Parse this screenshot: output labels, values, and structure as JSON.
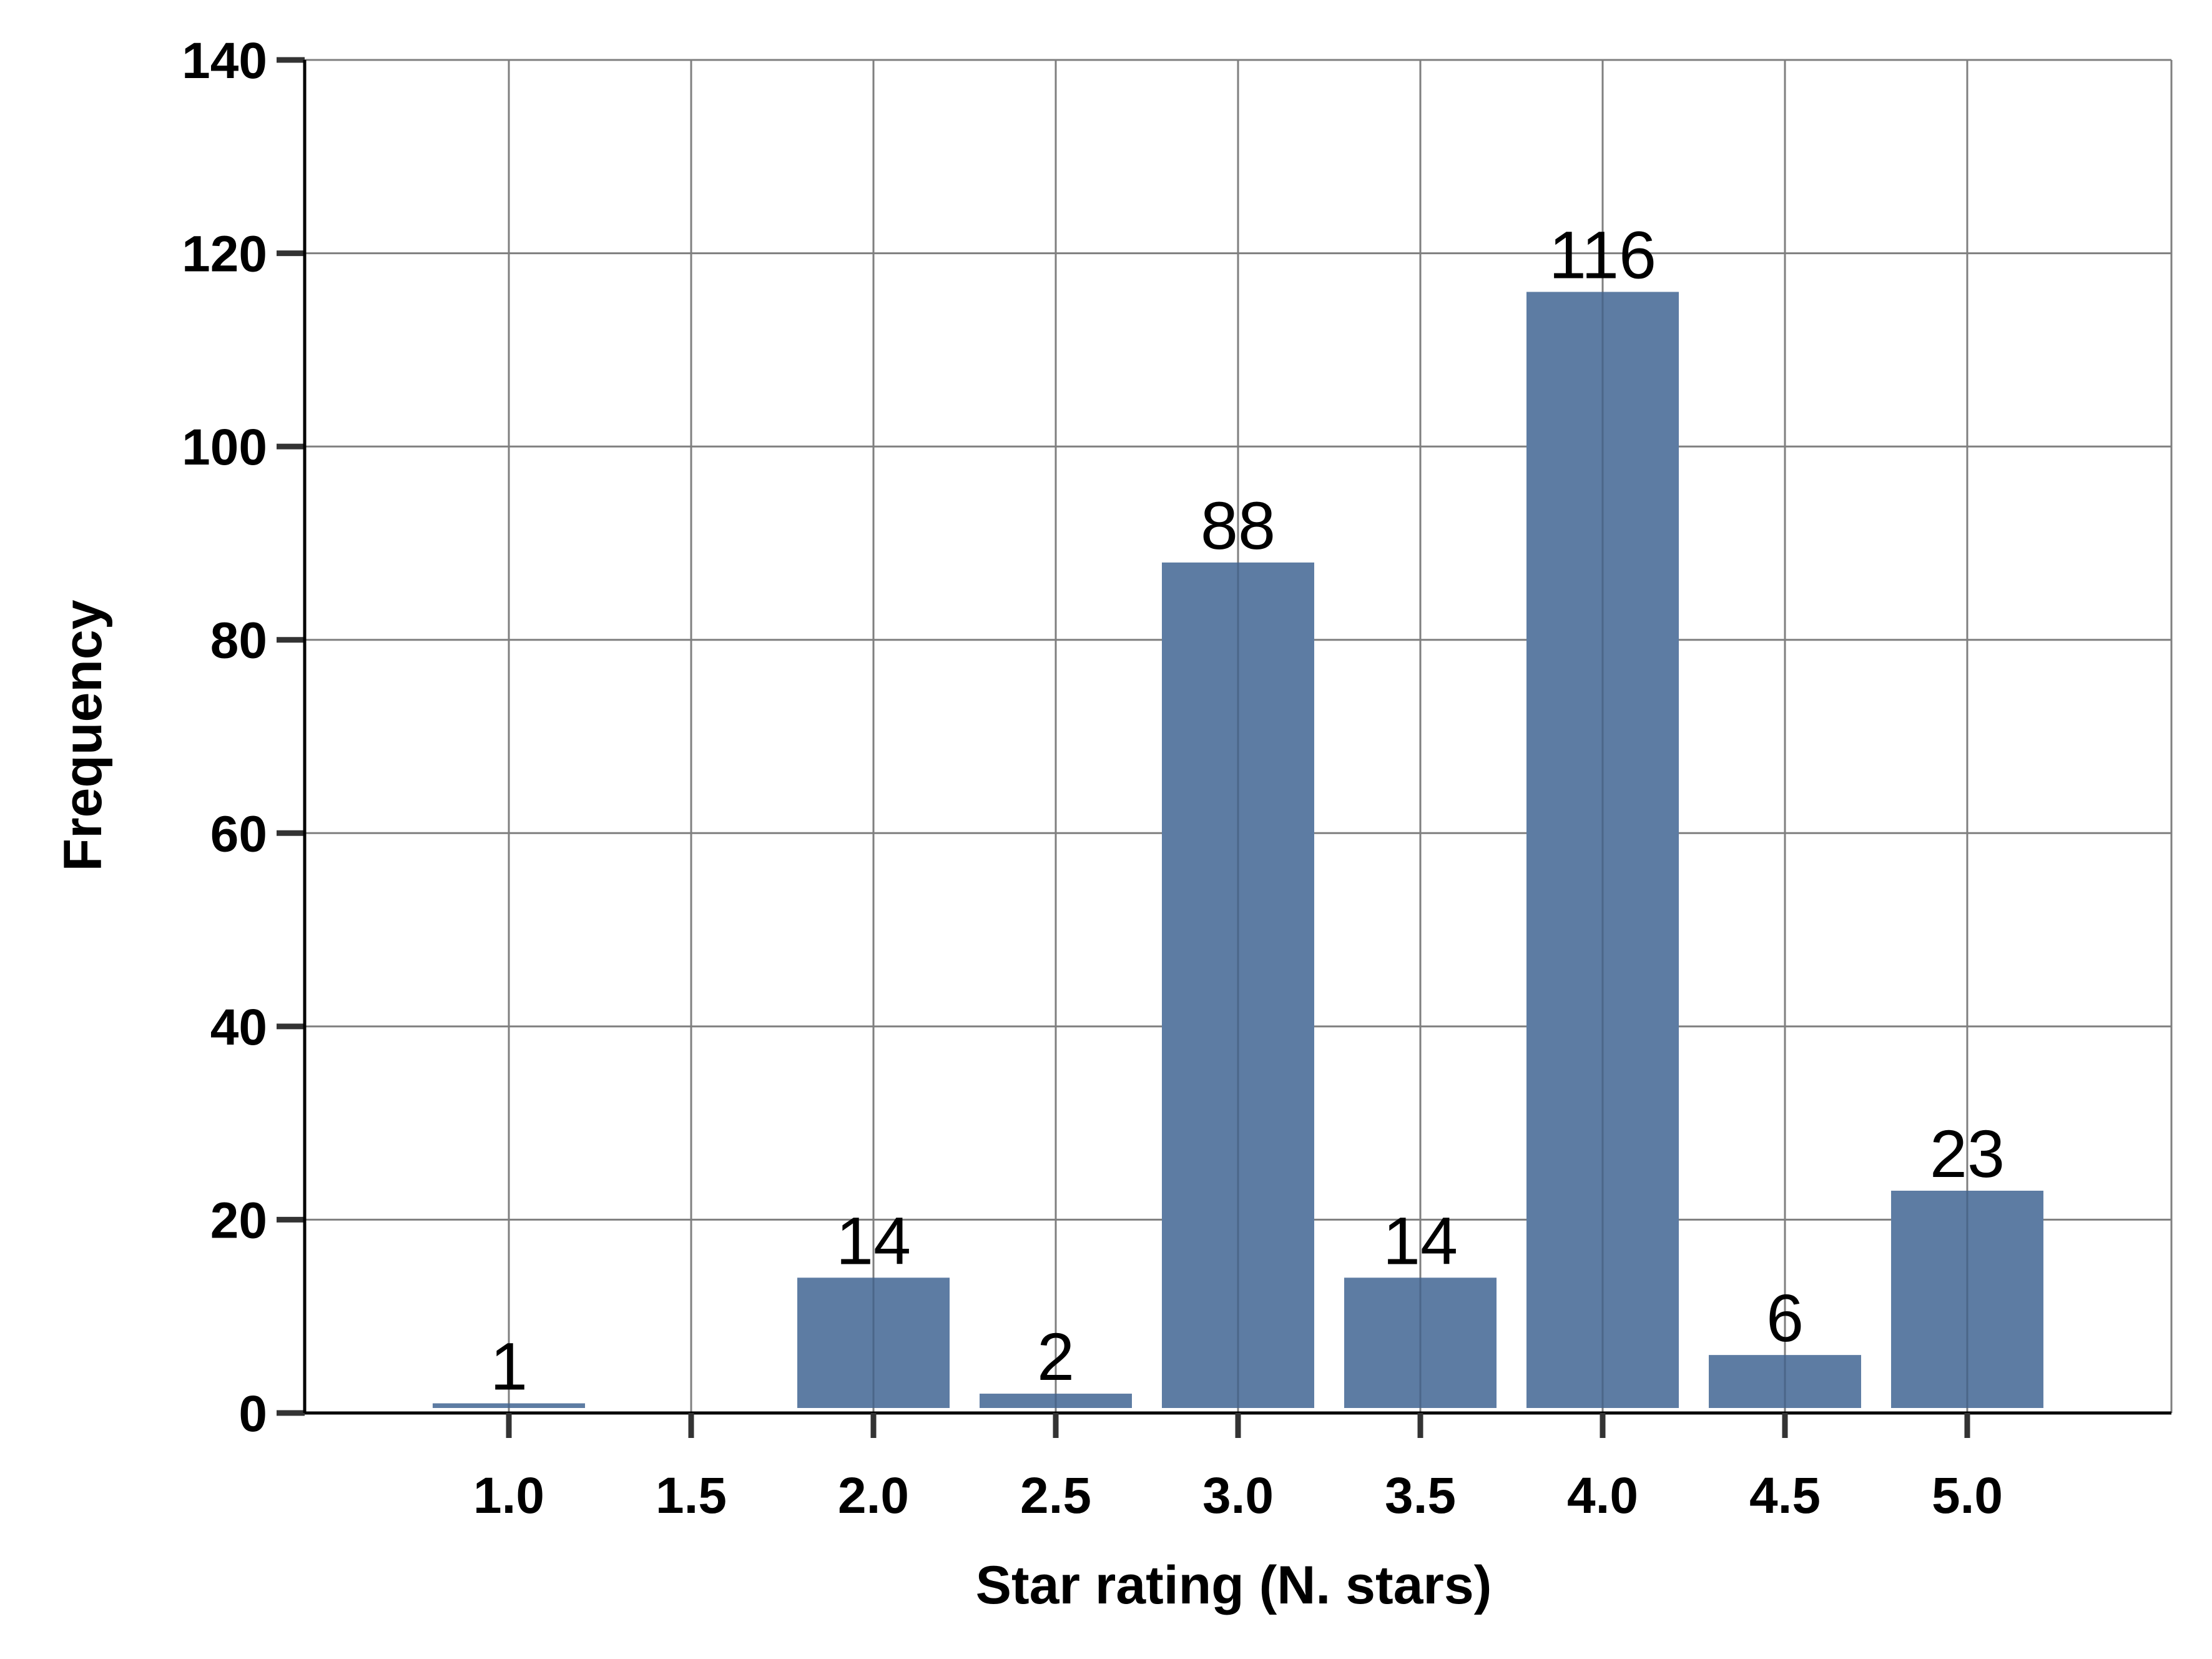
{
  "chart_data": {
    "type": "bar",
    "title": "",
    "xlabel": "Star rating (N. stars)",
    "ylabel": "Frequency",
    "categories": [
      "1.0",
      "1.5",
      "2.0",
      "2.5",
      "3.0",
      "3.5",
      "4.0",
      "4.5",
      "5.0"
    ],
    "x": [
      1.0,
      1.5,
      2.0,
      2.5,
      3.0,
      3.5,
      4.0,
      4.5,
      5.0
    ],
    "values": [
      1,
      0,
      14,
      2,
      88,
      14,
      116,
      6,
      23
    ],
    "data_labels": [
      "1",
      "",
      "14",
      "2",
      "88",
      "14",
      "116",
      "6",
      "23"
    ],
    "yticks": [
      "0",
      "20",
      "40",
      "60",
      "80",
      "100",
      "120",
      "140"
    ],
    "ylim": [
      0,
      140
    ],
    "xlim": [
      0.44,
      5.56
    ],
    "grid": true,
    "legend": "none",
    "colors": {
      "bar": "#5d7ca3",
      "grid": "#7f7f7f",
      "axis": "#000000"
    }
  }
}
